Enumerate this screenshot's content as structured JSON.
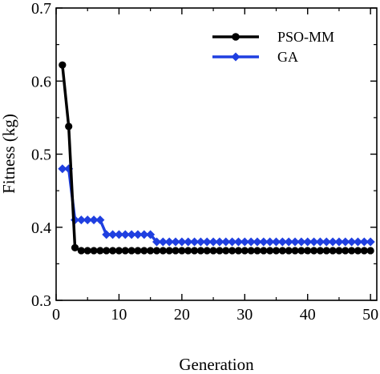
{
  "chart_data": {
    "type": "line",
    "xlabel": "Generation",
    "ylabel": "Fitness (kg)",
    "xlim": [
      0,
      51
    ],
    "ylim": [
      0.3,
      0.7
    ],
    "xticks": [
      0,
      10,
      20,
      30,
      40,
      50
    ],
    "yticks": [
      0.3,
      0.4,
      0.5,
      0.6,
      0.7
    ],
    "xtick_labels": [
      "0",
      "10",
      "20",
      "30",
      "40",
      "50"
    ],
    "ytick_labels": [
      "0.3",
      "0.4",
      "0.5",
      "0.6",
      "0.7"
    ],
    "legend_position": "top-right",
    "grid": false,
    "x": [
      1,
      2,
      3,
      4,
      5,
      6,
      7,
      8,
      9,
      10,
      11,
      12,
      13,
      14,
      15,
      16,
      17,
      18,
      19,
      20,
      21,
      22,
      23,
      24,
      25,
      26,
      27,
      28,
      29,
      30,
      31,
      32,
      33,
      34,
      35,
      36,
      37,
      38,
      39,
      40,
      41,
      42,
      43,
      44,
      45,
      46,
      47,
      48,
      49,
      50
    ],
    "series": [
      {
        "name": "PSO-MM",
        "color": "#000000",
        "marker": "circle",
        "values": [
          0.622,
          0.538,
          0.372,
          0.368,
          0.368,
          0.368,
          0.368,
          0.368,
          0.368,
          0.368,
          0.368,
          0.368,
          0.368,
          0.368,
          0.368,
          0.368,
          0.368,
          0.368,
          0.368,
          0.368,
          0.368,
          0.368,
          0.368,
          0.368,
          0.368,
          0.368,
          0.368,
          0.368,
          0.368,
          0.368,
          0.368,
          0.368,
          0.368,
          0.368,
          0.368,
          0.368,
          0.368,
          0.368,
          0.368,
          0.368,
          0.368,
          0.368,
          0.368,
          0.368,
          0.368,
          0.368,
          0.368,
          0.368,
          0.368,
          0.368
        ]
      },
      {
        "name": "GA",
        "color": "#1f3fe0",
        "marker": "diamond",
        "values": [
          0.48,
          0.48,
          0.41,
          0.41,
          0.41,
          0.41,
          0.41,
          0.39,
          0.39,
          0.39,
          0.39,
          0.39,
          0.39,
          0.39,
          0.39,
          0.38,
          0.38,
          0.38,
          0.38,
          0.38,
          0.38,
          0.38,
          0.38,
          0.38,
          0.38,
          0.38,
          0.38,
          0.38,
          0.38,
          0.38,
          0.38,
          0.38,
          0.38,
          0.38,
          0.38,
          0.38,
          0.38,
          0.38,
          0.38,
          0.38,
          0.38,
          0.38,
          0.38,
          0.38,
          0.38,
          0.38,
          0.38,
          0.38,
          0.38,
          0.38
        ]
      }
    ]
  }
}
